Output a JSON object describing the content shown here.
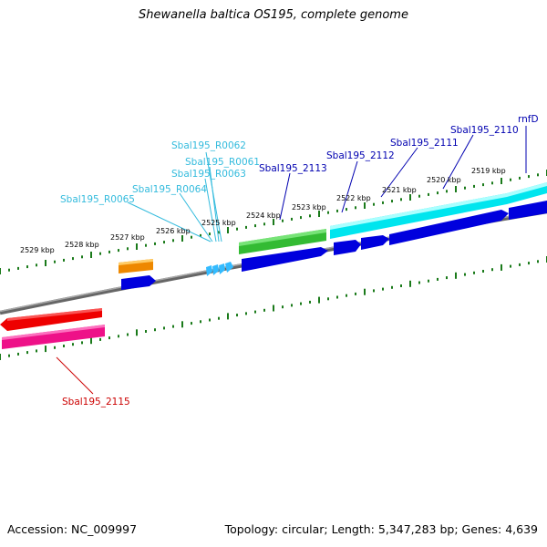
{
  "title": "Shewanella baltica OS195, complete genome",
  "footer": {
    "accession": "Accession: NC_009997",
    "topology": "Topology: circular; Length: 5,347,283 bp; Genes: 4,639"
  },
  "colors": {
    "backbone": "#808080",
    "tick": "#1a7a1a",
    "label_dark": "#0000b0",
    "label_cyan": "#33bbdd",
    "label_red": "#cc0000",
    "gene_blue": "#0000dd",
    "gene_cyan": "#00e5ee",
    "gene_green": "#33bb33",
    "gene_orange": "#ee8800",
    "gene_red": "#ee0000",
    "gene_pink": "#ee1188",
    "rna_arrow": "#33bbff"
  },
  "ticks": [
    "2519 kbp",
    "2520 kbp",
    "2521 kbp",
    "2522 kbp",
    "2523 kbp",
    "2524 kbp",
    "2525 kbp",
    "2526 kbp",
    "2527 kbp",
    "2528 kbp",
    "2529 kbp"
  ],
  "features": [
    {
      "label": "rnfD",
      "color": "label_dark"
    },
    {
      "label": "Sbal195_2110",
      "color": "label_dark"
    },
    {
      "label": "Sbal195_2111",
      "color": "label_dark"
    },
    {
      "label": "Sbal195_2112",
      "color": "label_dark"
    },
    {
      "label": "Sbal195_2113",
      "color": "label_dark"
    },
    {
      "label": "Sbal195_R0062",
      "color": "label_cyan"
    },
    {
      "label": "Sbal195_R0061",
      "color": "label_cyan"
    },
    {
      "label": "Sbal195_R0063",
      "color": "label_cyan"
    },
    {
      "label": "Sbal195_R0064",
      "color": "label_cyan"
    },
    {
      "label": "Sbal195_R0065",
      "color": "label_cyan"
    },
    {
      "label": "Sbal195_2115",
      "color": "label_red"
    }
  ]
}
